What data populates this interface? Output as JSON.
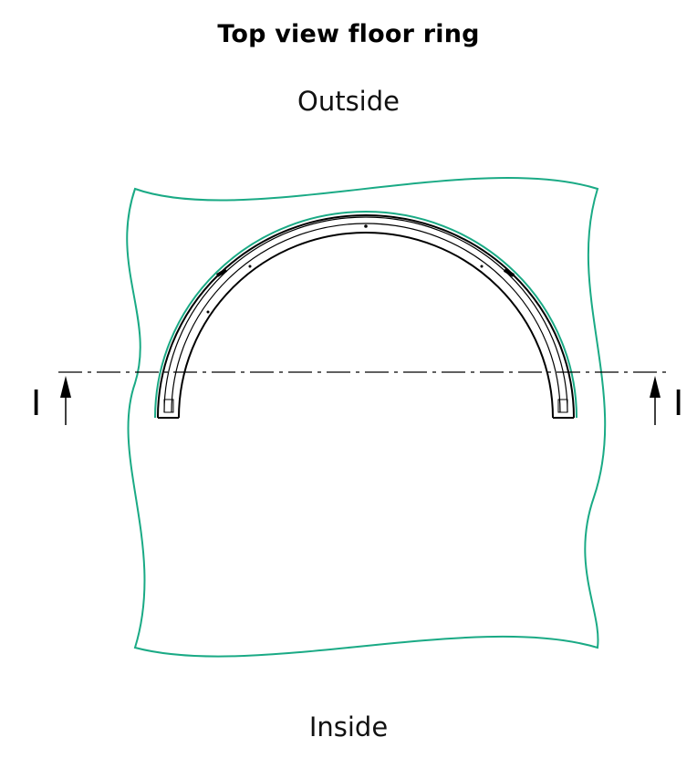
{
  "title": "Top view floor ring",
  "labels": {
    "outside": "Outside",
    "inside": "Inside"
  },
  "section": {
    "left_letter": "I",
    "right_letter": "I"
  },
  "colors": {
    "slab_outline": "#1aaa85",
    "ring_outline": "#000000",
    "centerline": "#000000"
  }
}
